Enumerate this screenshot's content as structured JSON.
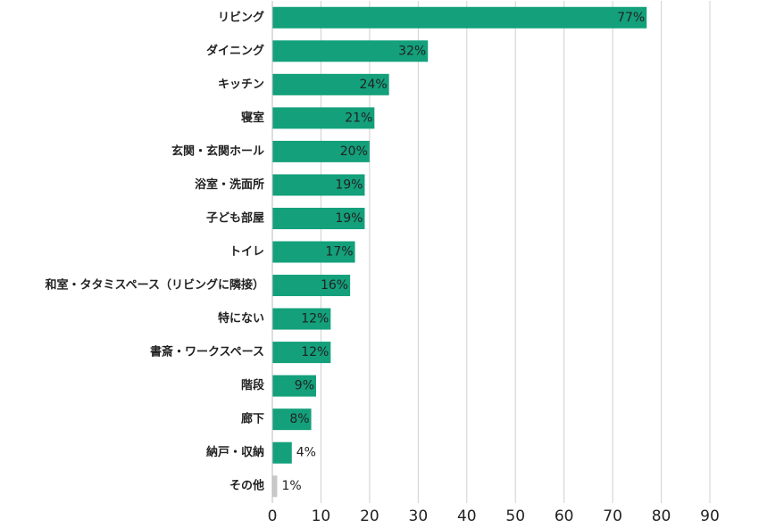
{
  "chart_data": {
    "type": "bar",
    "orientation": "horizontal",
    "categories": [
      "リビング",
      "ダイニング",
      "キッチン",
      "寝室",
      "玄関・玄関ホール",
      "浴室・洗面所",
      "子ども部屋",
      "トイレ",
      "和室・タタミスペース（リビングに隣接）",
      "特にない",
      "書斎・ワークスペース",
      "階段",
      "廊下",
      "納戸・収納",
      "その他"
    ],
    "values": [
      77,
      32,
      24,
      21,
      20,
      19,
      19,
      17,
      16,
      12,
      12,
      9,
      8,
      4,
      1
    ],
    "value_labels": [
      "77%",
      "32%",
      "24%",
      "21%",
      "20%",
      "19%",
      "19%",
      "17%",
      "16%",
      "12%",
      "12%",
      "9%",
      "8%",
      "4%",
      "1%"
    ],
    "colors": [
      "#13a07b",
      "#13a07b",
      "#13a07b",
      "#13a07b",
      "#13a07b",
      "#13a07b",
      "#13a07b",
      "#13a07b",
      "#13a07b",
      "#13a07b",
      "#13a07b",
      "#13a07b",
      "#13a07b",
      "#13a07b",
      "#c8c8c8"
    ],
    "xlim": [
      0,
      90
    ],
    "xticks": [
      0,
      10,
      20,
      30,
      40,
      50,
      60,
      70,
      80,
      90
    ],
    "grid": true
  }
}
